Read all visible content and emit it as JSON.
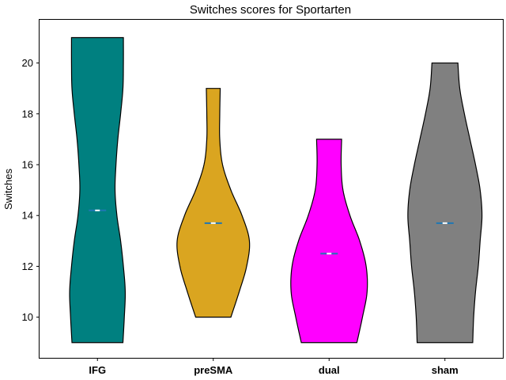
{
  "chart_data": {
    "type": "violin",
    "title": "Switches scores for Sportarten",
    "xlabel": "",
    "ylabel": "Switches",
    "ylim": [
      8.4,
      21.7
    ],
    "yticks": [
      10,
      12,
      14,
      16,
      18,
      20
    ],
    "categories": [
      "IFG",
      "preSMA",
      "dual",
      "sham"
    ],
    "grid": false,
    "series": [
      {
        "category": "IFG",
        "color": "#008080",
        "min": 9,
        "max": 21,
        "mean": 14.2,
        "density": [
          [
            9,
            0.55
          ],
          [
            10,
            0.58
          ],
          [
            11,
            0.6
          ],
          [
            12,
            0.56
          ],
          [
            13,
            0.5
          ],
          [
            14,
            0.42
          ],
          [
            15,
            0.38
          ],
          [
            16,
            0.4
          ],
          [
            17,
            0.44
          ],
          [
            18,
            0.5
          ],
          [
            19,
            0.55
          ],
          [
            20,
            0.56
          ],
          [
            21,
            0.56
          ]
        ]
      },
      {
        "category": "preSMA",
        "color": "#DAA520",
        "min": 10,
        "max": 19,
        "mean": 13.7,
        "density": [
          [
            10,
            0.38
          ],
          [
            11,
            0.56
          ],
          [
            12,
            0.72
          ],
          [
            13,
            0.78
          ],
          [
            14,
            0.62
          ],
          [
            15,
            0.38
          ],
          [
            16,
            0.2
          ],
          [
            17,
            0.14
          ],
          [
            18,
            0.14
          ],
          [
            19,
            0.15
          ]
        ]
      },
      {
        "category": "dual",
        "color": "#FF00FF",
        "min": 9,
        "max": 17,
        "mean": 12.5,
        "density": [
          [
            9,
            0.6
          ],
          [
            10,
            0.72
          ],
          [
            11,
            0.82
          ],
          [
            12,
            0.8
          ],
          [
            13,
            0.66
          ],
          [
            14,
            0.45
          ],
          [
            15,
            0.3
          ],
          [
            16,
            0.26
          ],
          [
            17,
            0.27
          ]
        ]
      },
      {
        "category": "sham",
        "color": "#808080",
        "min": 9,
        "max": 20,
        "mean": 13.7,
        "density": [
          [
            9,
            0.6
          ],
          [
            10,
            0.62
          ],
          [
            11,
            0.66
          ],
          [
            12,
            0.72
          ],
          [
            13,
            0.76
          ],
          [
            14,
            0.8
          ],
          [
            15,
            0.76
          ],
          [
            16,
            0.66
          ],
          [
            17,
            0.54
          ],
          [
            18,
            0.42
          ],
          [
            19,
            0.32
          ],
          [
            20,
            0.28
          ]
        ]
      }
    ]
  }
}
